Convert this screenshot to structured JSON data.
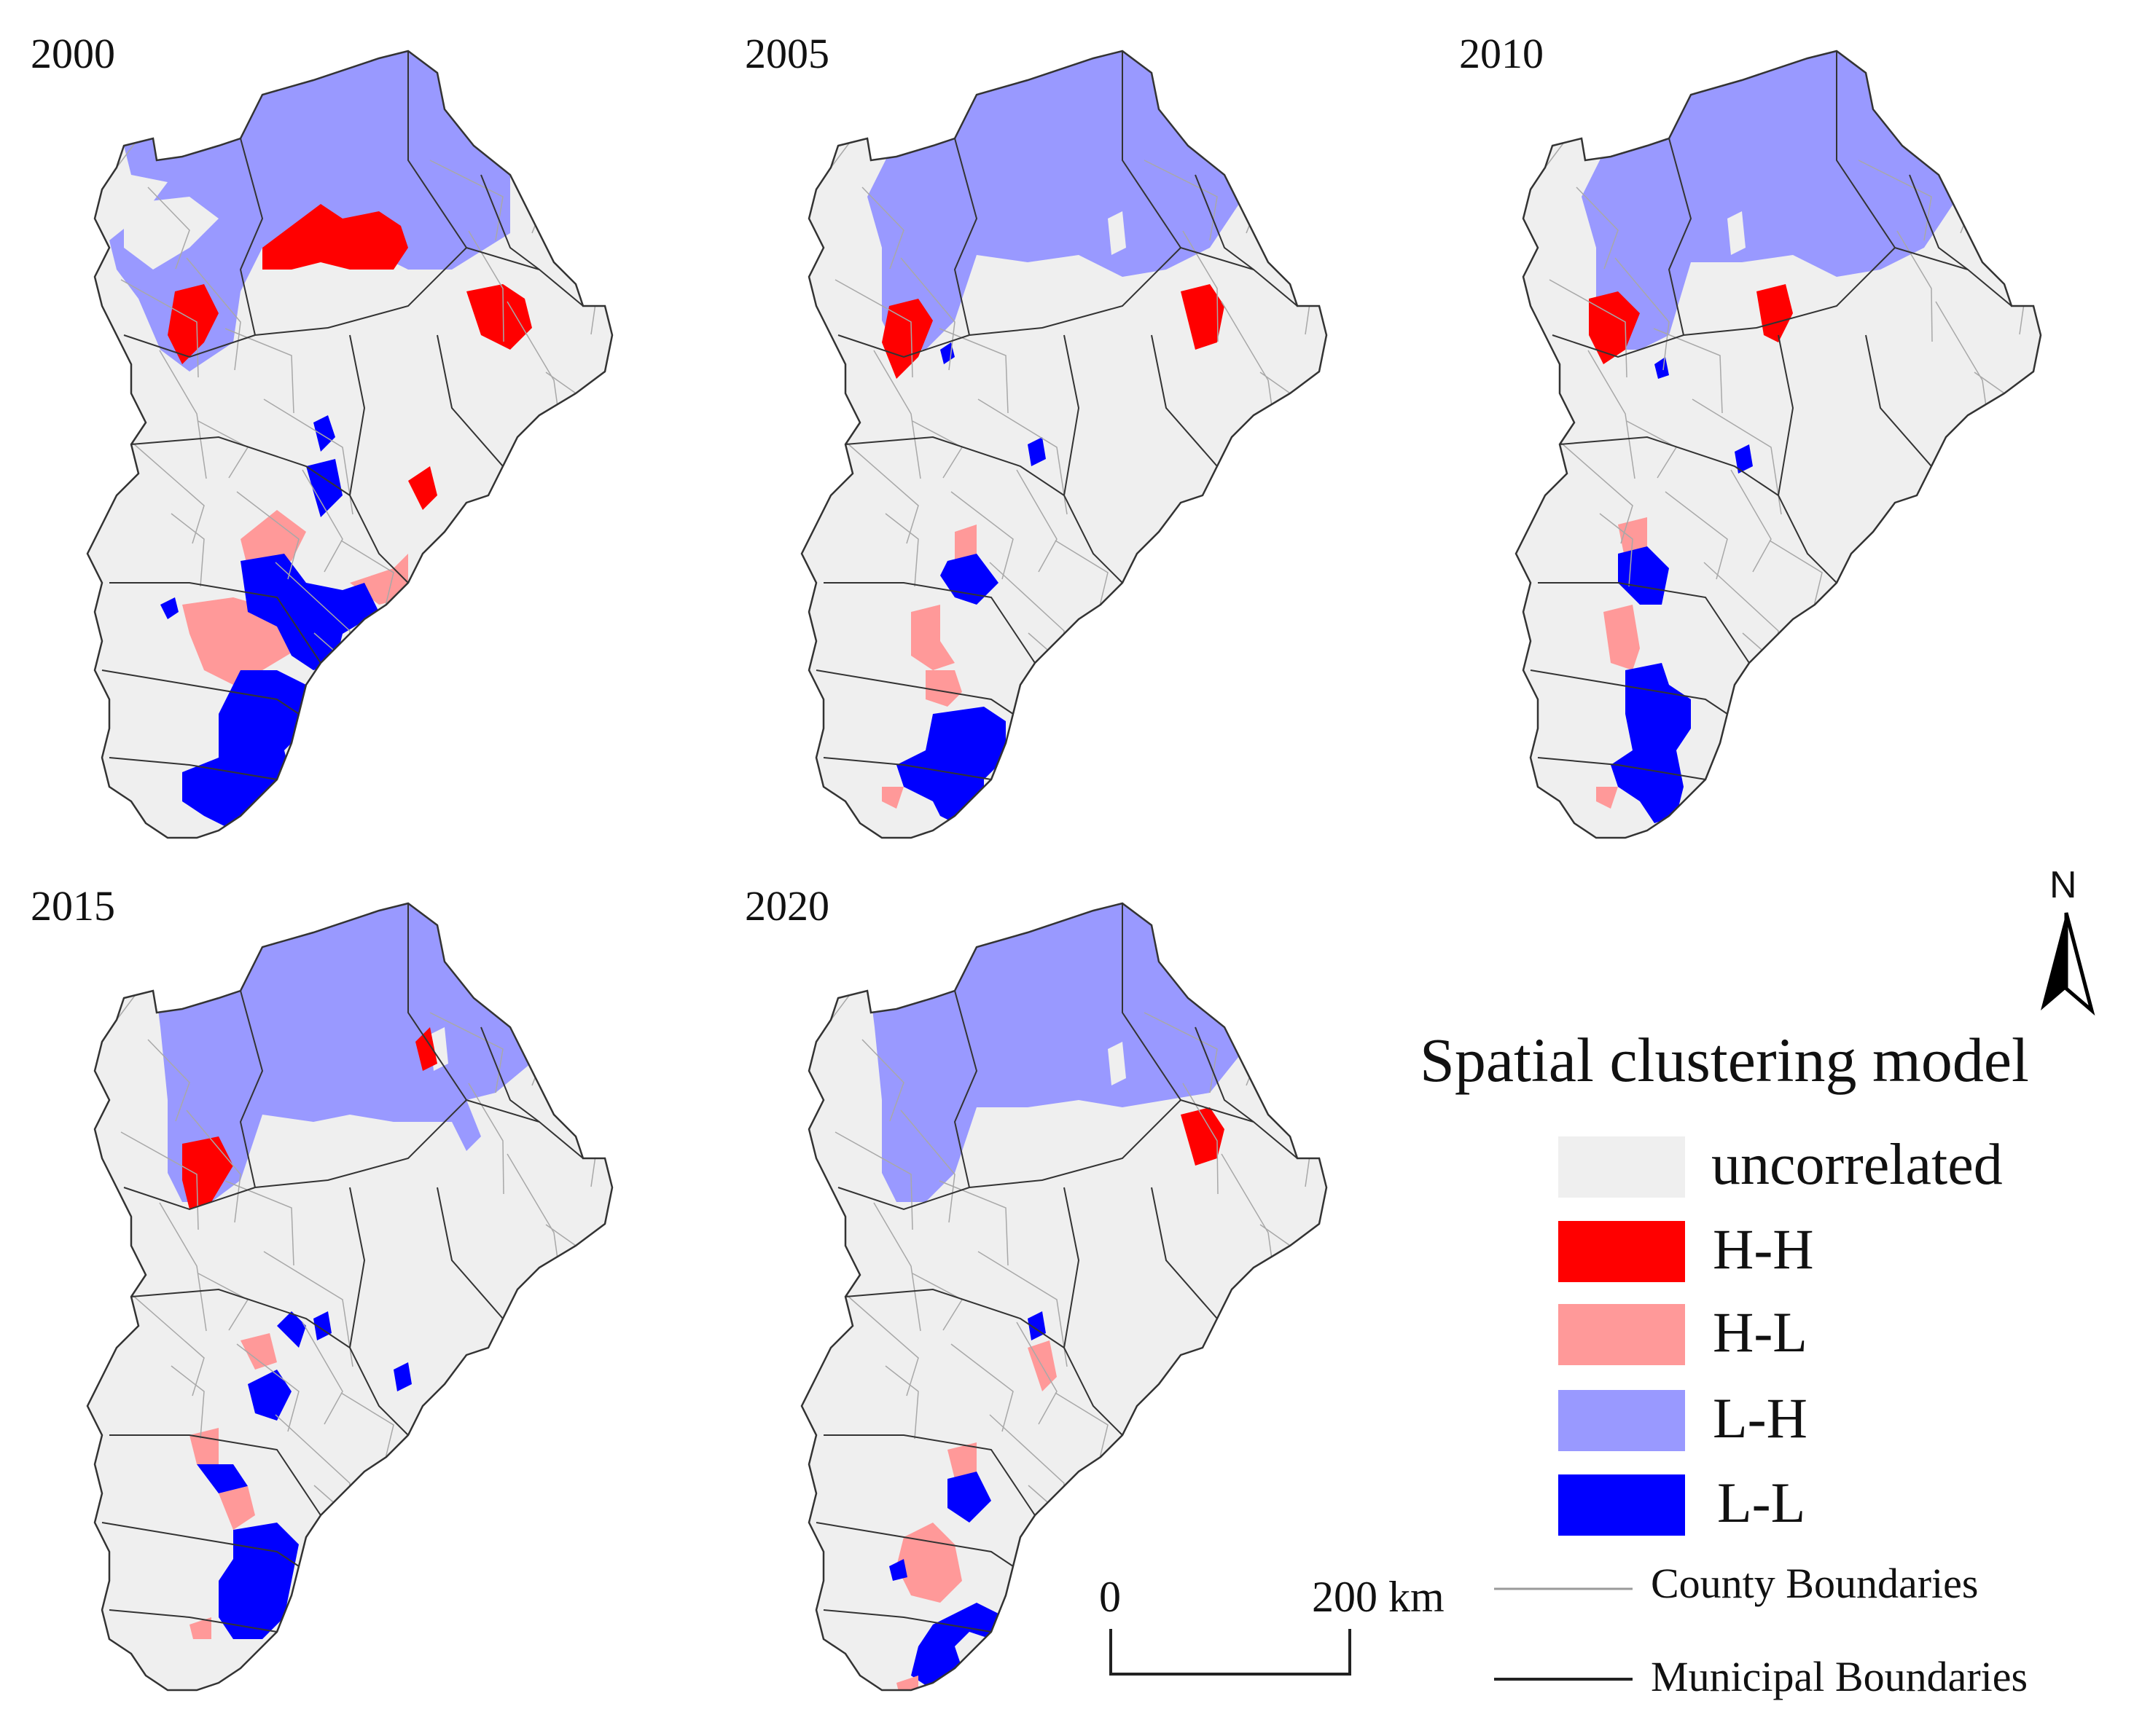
{
  "panels": [
    {
      "year": "2000"
    },
    {
      "year": "2005"
    },
    {
      "year": "2010"
    },
    {
      "year": "2015"
    },
    {
      "year": "2020"
    }
  ],
  "legend": {
    "title": "Spatial clustering model",
    "items": [
      {
        "label": "uncorrelated",
        "color": "#efefef"
      },
      {
        "label": "H-H",
        "color": "#ff0000"
      },
      {
        "label": "H-L",
        "color": "#ff9999"
      },
      {
        "label": "L-H",
        "color": "#9999ff"
      },
      {
        "label": "L-L",
        "color": "#0000ff"
      }
    ]
  },
  "scale_bar": {
    "start_label": "0",
    "end_label": "200 km"
  },
  "boundaries": {
    "county_label": "County Boundaries",
    "municipal_label": "Municipal Boundaries"
  },
  "north_arrow": {
    "label": "N"
  }
}
